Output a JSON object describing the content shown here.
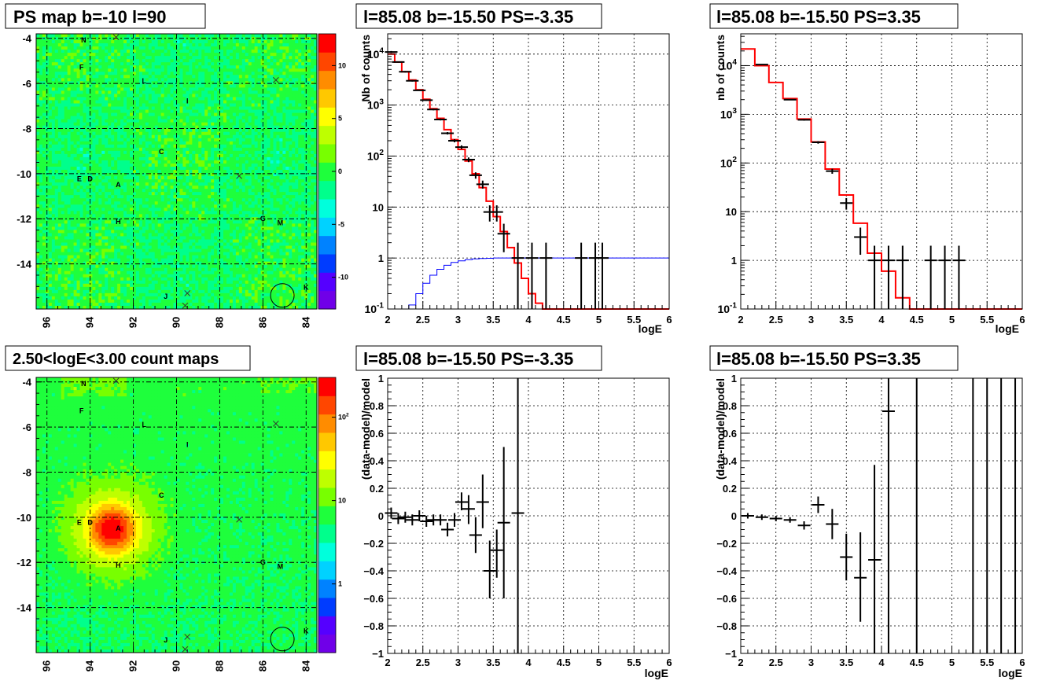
{
  "chart_data": [
    {
      "type": "heatmap",
      "title": "PS map b=-10 l=90",
      "xlim": [
        96.5,
        83.5
      ],
      "ylim": [
        -16,
        -3.8
      ],
      "x_ticks": [
        "96",
        "94",
        "92",
        "90",
        "88",
        "86",
        "84"
      ],
      "y_ticks": [
        "-4",
        "-6",
        "-8",
        "-10",
        "-12",
        "-14"
      ],
      "color_scale": {
        "min": -13,
        "max": 13,
        "ticks": [
          "10",
          "5",
          "0",
          "-5",
          "-10"
        ]
      },
      "sources": [
        {
          "name": "N",
          "l": 94.3,
          "b": -4.05
        },
        {
          "name": "F",
          "l": 94.4,
          "b": -5.25
        },
        {
          "name": "L",
          "l": 91.5,
          "b": -5.85
        },
        {
          "name": "I",
          "l": 89.5,
          "b": -6.75
        },
        {
          "name": "C",
          "l": 90.7,
          "b": -9.0
        },
        {
          "name": "E",
          "l": 94.5,
          "b": -10.2
        },
        {
          "name": "D",
          "l": 94.0,
          "b": -10.2
        },
        {
          "name": "A",
          "l": 92.7,
          "b": -10.45
        },
        {
          "name": "H",
          "l": 92.7,
          "b": -12.1
        },
        {
          "name": "G",
          "l": 86.0,
          "b": -11.95
        },
        {
          "name": "M",
          "l": 85.2,
          "b": -12.15
        },
        {
          "name": "K",
          "l": 84.0,
          "b": -15.0
        },
        {
          "name": "J",
          "l": 90.5,
          "b": -15.4
        }
      ],
      "crosses": [
        {
          "l": 92.8,
          "b": -3.95
        },
        {
          "l": 85.4,
          "b": -5.85
        },
        {
          "l": 87.1,
          "b": -10.1
        },
        {
          "l": 89.5,
          "b": -15.3
        },
        {
          "l": 89.6,
          "b": -15.85
        }
      ],
      "psf_circle": {
        "l": 85.1,
        "b": -15.4
      }
    },
    {
      "type": "line",
      "title": "l=85.08 b=-15.50 PS=-3.35",
      "xlabel": "logE",
      "ylabel": "Nb of counts",
      "xlim": [
        2,
        6
      ],
      "ylim": [
        0.1,
        25000
      ],
      "yscale": "log",
      "x_ticks": [
        "2",
        "2.5",
        "3",
        "3.5",
        "4",
        "4.5",
        "5",
        "5.5",
        "6"
      ],
      "y_ticks": [
        {
          "v": 10000,
          "b": "10",
          "e": "4"
        },
        {
          "v": 1000,
          "b": "10",
          "e": "3"
        },
        {
          "v": 100,
          "b": "10",
          "e": "2"
        },
        {
          "v": 10,
          "t": "10"
        },
        {
          "v": 1,
          "t": "1"
        },
        {
          "v": 0.1,
          "b": "10",
          "e": "-1"
        }
      ],
      "series": [
        {
          "kind": "step",
          "color": "#ff0000",
          "edges": [
            2,
            2.1,
            2.2,
            2.3,
            2.4,
            2.5,
            2.6,
            2.7,
            2.8,
            2.9,
            3.0,
            3.1,
            3.2,
            3.3,
            3.4,
            3.5,
            3.6,
            3.7,
            3.8,
            3.9,
            4.0,
            4.1,
            4.2,
            4.3,
            6.0
          ],
          "values": [
            10000,
            7000,
            4500,
            3100,
            2000,
            1300,
            850,
            550,
            330,
            210,
            135,
            80,
            45,
            24,
            13,
            6.5,
            3.3,
            1.6,
            0.8,
            0.4,
            0.2,
            0.13,
            0.1,
            0.1
          ]
        },
        {
          "kind": "step",
          "color": "#0000ff",
          "edges": [
            2,
            2.3,
            2.4,
            2.5,
            2.6,
            2.7,
            2.8,
            2.9,
            3.0,
            3.1,
            3.2,
            3.3,
            3.4,
            3.5,
            6.0
          ],
          "values": [
            0.1,
            0.12,
            0.2,
            0.32,
            0.46,
            0.6,
            0.72,
            0.82,
            0.88,
            0.93,
            0.96,
            0.98,
            0.99,
            1.0
          ]
        },
        {
          "kind": "points",
          "color": "#000000",
          "points": [
            {
              "x": 2.05,
              "y": 11000,
              "lo": 10500,
              "hi": 11500
            },
            {
              "x": 2.15,
              "y": 7000,
              "lo": 6800,
              "hi": 7200
            },
            {
              "x": 2.25,
              "y": 4500,
              "lo": 4350,
              "hi": 4650
            },
            {
              "x": 2.35,
              "y": 3000,
              "lo": 2890,
              "hi": 3110
            },
            {
              "x": 2.45,
              "y": 1950,
              "lo": 1900,
              "hi": 2000
            },
            {
              "x": 2.55,
              "y": 1250,
              "lo": 1210,
              "hi": 1290
            },
            {
              "x": 2.65,
              "y": 820,
              "lo": 790,
              "hi": 850
            },
            {
              "x": 2.75,
              "y": 520,
              "lo": 500,
              "hi": 545
            },
            {
              "x": 2.85,
              "y": 280,
              "lo": 265,
              "hi": 295
            },
            {
              "x": 2.95,
              "y": 200,
              "lo": 186,
              "hi": 214
            },
            {
              "x": 3.05,
              "y": 150,
              "lo": 138,
              "hi": 162
            },
            {
              "x": 3.15,
              "y": 85,
              "lo": 76,
              "hi": 94
            },
            {
              "x": 3.25,
              "y": 42,
              "lo": 36,
              "hi": 48
            },
            {
              "x": 3.35,
              "y": 28,
              "lo": 23,
              "hi": 33
            },
            {
              "x": 3.45,
              "y": 8,
              "lo": 5.2,
              "hi": 10.8
            },
            {
              "x": 3.55,
              "y": 8,
              "lo": 5.2,
              "hi": 10.8
            },
            {
              "x": 3.65,
              "y": 3,
              "lo": 1.3,
              "hi": 4.7
            },
            {
              "x": 3.85,
              "y": 1,
              "lo": 0.1,
              "hi": 2
            },
            {
              "x": 4.05,
              "y": 1,
              "lo": 0.1,
              "hi": 2
            },
            {
              "x": 4.25,
              "y": 1,
              "lo": 0.1,
              "hi": 2
            },
            {
              "x": 4.75,
              "y": 1,
              "lo": 0.1,
              "hi": 2
            },
            {
              "x": 4.95,
              "y": 1,
              "lo": 0.1,
              "hi": 2
            },
            {
              "x": 5.05,
              "y": 1,
              "lo": 0.1,
              "hi": 2
            }
          ]
        }
      ]
    },
    {
      "type": "line",
      "title": "l=85.08 b=-15.50 PS=3.35",
      "xlabel": "logE",
      "ylabel": "nb of counts",
      "xlim": [
        2,
        6
      ],
      "ylim": [
        0.1,
        45000
      ],
      "yscale": "log",
      "x_ticks": [
        "2",
        "2.5",
        "3",
        "3.5",
        "4",
        "4.5",
        "5",
        "5.5",
        "6"
      ],
      "y_ticks": [
        {
          "v": 10000,
          "b": "10",
          "e": "4"
        },
        {
          "v": 1000,
          "b": "10",
          "e": "3"
        },
        {
          "v": 100,
          "b": "10",
          "e": "2"
        },
        {
          "v": 10,
          "t": "10"
        },
        {
          "v": 1,
          "t": "1"
        },
        {
          "v": 0.1,
          "b": "10",
          "e": "-1"
        }
      ],
      "series": [
        {
          "kind": "step",
          "color": "#ff0000",
          "edges": [
            2,
            2.2,
            2.4,
            2.6,
            2.8,
            3.0,
            3.2,
            3.4,
            3.6,
            3.8,
            4.0,
            4.2,
            4.4,
            6.0
          ],
          "values": [
            22000,
            10000,
            4500,
            2100,
            800,
            270,
            75,
            22,
            5.8,
            1.4,
            0.6,
            0.17,
            0.1
          ]
        },
        {
          "kind": "points",
          "color": "#000000",
          "points": [
            {
              "x": 2.3,
              "y": 10500,
              "lo": 10300,
              "hi": 10700
            },
            {
              "x": 2.7,
              "y": 2000,
              "lo": 1950,
              "hi": 2050
            },
            {
              "x": 2.9,
              "y": 770,
              "lo": 740,
              "hi": 800
            },
            {
              "x": 3.1,
              "y": 265,
              "lo": 249,
              "hi": 281
            },
            {
              "x": 3.3,
              "y": 68,
              "lo": 60,
              "hi": 76
            },
            {
              "x": 3.5,
              "y": 15,
              "lo": 11,
              "hi": 19
            },
            {
              "x": 3.7,
              "y": 3,
              "lo": 1.3,
              "hi": 4.7
            },
            {
              "x": 3.9,
              "y": 1,
              "lo": 0.1,
              "hi": 2
            },
            {
              "x": 4.1,
              "y": 1,
              "lo": 0.1,
              "hi": 2
            },
            {
              "x": 4.3,
              "y": 1,
              "lo": 0.1,
              "hi": 2
            },
            {
              "x": 4.7,
              "y": 1,
              "lo": 0.1,
              "hi": 2
            },
            {
              "x": 4.9,
              "y": 1,
              "lo": 0.1,
              "hi": 2
            },
            {
              "x": 5.1,
              "y": 1,
              "lo": 0.1,
              "hi": 2
            }
          ]
        }
      ]
    },
    {
      "type": "heatmap",
      "title": "2.50<logE<3.00 count maps",
      "xlim": [
        96.5,
        83.5
      ],
      "ylim": [
        -16,
        -3.8
      ],
      "x_ticks": [
        "96",
        "94",
        "92",
        "90",
        "88",
        "86",
        "84"
      ],
      "y_ticks": [
        "-4",
        "-6",
        "-8",
        "-10",
        "-12",
        "-14"
      ],
      "color_scale": {
        "min": 0.15,
        "max": 300,
        "scale": "log",
        "ticks": [
          {
            "v": 100,
            "b": "10",
            "e": "2"
          },
          {
            "v": 10,
            "t": "10"
          },
          {
            "v": 1,
            "t": "1"
          }
        ]
      },
      "sources": [
        {
          "name": "N",
          "l": 94.3,
          "b": -4.05
        },
        {
          "name": "F",
          "l": 94.4,
          "b": -5.25
        },
        {
          "name": "L",
          "l": 91.5,
          "b": -5.85
        },
        {
          "name": "I",
          "l": 89.5,
          "b": -6.75
        },
        {
          "name": "C",
          "l": 90.7,
          "b": -9.0
        },
        {
          "name": "E",
          "l": 94.5,
          "b": -10.2
        },
        {
          "name": "D",
          "l": 94.0,
          "b": -10.2
        },
        {
          "name": "A",
          "l": 92.7,
          "b": -10.45
        },
        {
          "name": "H",
          "l": 92.7,
          "b": -12.1
        },
        {
          "name": "G",
          "l": 86.0,
          "b": -11.95
        },
        {
          "name": "M",
          "l": 85.2,
          "b": -12.15
        },
        {
          "name": "K",
          "l": 84.0,
          "b": -15.0
        },
        {
          "name": "J",
          "l": 90.5,
          "b": -15.4
        }
      ],
      "crosses": [
        {
          "l": 92.8,
          "b": -3.95
        },
        {
          "l": 85.4,
          "b": -5.85
        },
        {
          "l": 87.1,
          "b": -10.1
        },
        {
          "l": 89.5,
          "b": -15.3
        },
        {
          "l": 89.6,
          "b": -15.85
        }
      ],
      "psf_circle": {
        "l": 85.1,
        "b": -15.4
      }
    },
    {
      "type": "scatter",
      "title": "l=85.08 b=-15.50 PS=-3.35",
      "xlabel": "logE",
      "ylabel": "(data-model)/model",
      "xlim": [
        2,
        6
      ],
      "ylim": [
        -1,
        1
      ],
      "x_ticks": [
        "2",
        "2.5",
        "3",
        "3.5",
        "4",
        "4.5",
        "5",
        "5.5",
        "6"
      ],
      "y_ticks": [
        "1",
        "0.8",
        "0.6",
        "0.4",
        "0.2",
        "0",
        "-0.2",
        "-0.4",
        "-0.6",
        "-0.8",
        "-1"
      ],
      "points": [
        {
          "x": 2.05,
          "y": 0.02,
          "lo": -0.02,
          "hi": 0.06
        },
        {
          "x": 2.15,
          "y": -0.02,
          "lo": -0.06,
          "hi": 0.02
        },
        {
          "x": 2.25,
          "y": -0.01,
          "lo": -0.05,
          "hi": 0.03
        },
        {
          "x": 2.35,
          "y": -0.03,
          "lo": -0.07,
          "hi": 0.01
        },
        {
          "x": 2.45,
          "y": 0.0,
          "lo": -0.04,
          "hi": 0.04
        },
        {
          "x": 2.55,
          "y": -0.04,
          "lo": -0.08,
          "hi": 0.0
        },
        {
          "x": 2.65,
          "y": -0.03,
          "lo": -0.07,
          "hi": 0.01
        },
        {
          "x": 2.75,
          "y": -0.03,
          "lo": -0.07,
          "hi": 0.01
        },
        {
          "x": 2.85,
          "y": -0.1,
          "lo": -0.15,
          "hi": -0.05
        },
        {
          "x": 2.95,
          "y": -0.03,
          "lo": -0.08,
          "hi": 0.02
        },
        {
          "x": 3.05,
          "y": 0.1,
          "lo": 0.04,
          "hi": 0.17
        },
        {
          "x": 3.15,
          "y": 0.05,
          "lo": -0.06,
          "hi": 0.15
        },
        {
          "x": 3.25,
          "y": -0.14,
          "lo": -0.27,
          "hi": -0.01
        },
        {
          "x": 3.35,
          "y": 0.1,
          "lo": -0.09,
          "hi": 0.3
        },
        {
          "x": 3.45,
          "y": -0.4,
          "lo": -0.6,
          "hi": -0.18
        },
        {
          "x": 3.55,
          "y": -0.25,
          "lo": -0.45,
          "hi": -0.1
        },
        {
          "x": 3.65,
          "y": -0.05,
          "lo": -0.6,
          "hi": 0.5
        },
        {
          "x": 3.85,
          "y": 0.02,
          "lo": -1.0,
          "hi": 1.0
        }
      ]
    },
    {
      "type": "scatter",
      "title": "l=85.08 b=-15.50 PS=3.35",
      "xlabel": "logE",
      "ylabel": "(data-model)/model",
      "xlim": [
        2,
        6
      ],
      "ylim": [
        -1,
        1
      ],
      "x_ticks": [
        "2",
        "2.5",
        "3",
        "3.5",
        "4",
        "4.5",
        "5",
        "5.5",
        "6"
      ],
      "y_ticks": [
        "1",
        "0.8",
        "0.6",
        "0.4",
        "0.2",
        "0",
        "-0.2",
        "-0.4",
        "-0.6",
        "-0.8",
        "-1"
      ],
      "points": [
        {
          "x": 2.1,
          "y": 0.0,
          "lo": -0.02,
          "hi": 0.02
        },
        {
          "x": 2.3,
          "y": -0.01,
          "lo": -0.03,
          "hi": 0.01
        },
        {
          "x": 2.5,
          "y": -0.02,
          "lo": -0.04,
          "hi": 0.0
        },
        {
          "x": 2.7,
          "y": -0.03,
          "lo": -0.05,
          "hi": -0.01
        },
        {
          "x": 2.9,
          "y": -0.07,
          "lo": -0.1,
          "hi": -0.04
        },
        {
          "x": 3.1,
          "y": 0.08,
          "lo": 0.02,
          "hi": 0.14
        },
        {
          "x": 3.3,
          "y": -0.06,
          "lo": -0.17,
          "hi": 0.05
        },
        {
          "x": 3.5,
          "y": -0.3,
          "lo": -0.47,
          "hi": -0.13
        },
        {
          "x": 3.7,
          "y": -0.45,
          "lo": -0.77,
          "hi": -0.12
        },
        {
          "x": 3.9,
          "y": -0.32,
          "lo": -1.0,
          "hi": 0.37
        },
        {
          "x": 4.1,
          "y": 0.76,
          "lo": -1.0,
          "hi": 1.0
        },
        {
          "x": 4.5,
          "y": 0.0,
          "lo": -1.0,
          "hi": 1.0,
          "nomark": true
        },
        {
          "x": 5.3,
          "y": 0.0,
          "lo": -1.0,
          "hi": 1.0,
          "nomark": true
        },
        {
          "x": 5.5,
          "y": 0.0,
          "lo": -1.0,
          "hi": 1.0,
          "nomark": true
        },
        {
          "x": 5.7,
          "y": 0.0,
          "lo": -1.0,
          "hi": 1.0,
          "nomark": true
        },
        {
          "x": 5.9,
          "y": 0.0,
          "lo": -1.0,
          "hi": 1.0,
          "nomark": true
        }
      ]
    }
  ]
}
